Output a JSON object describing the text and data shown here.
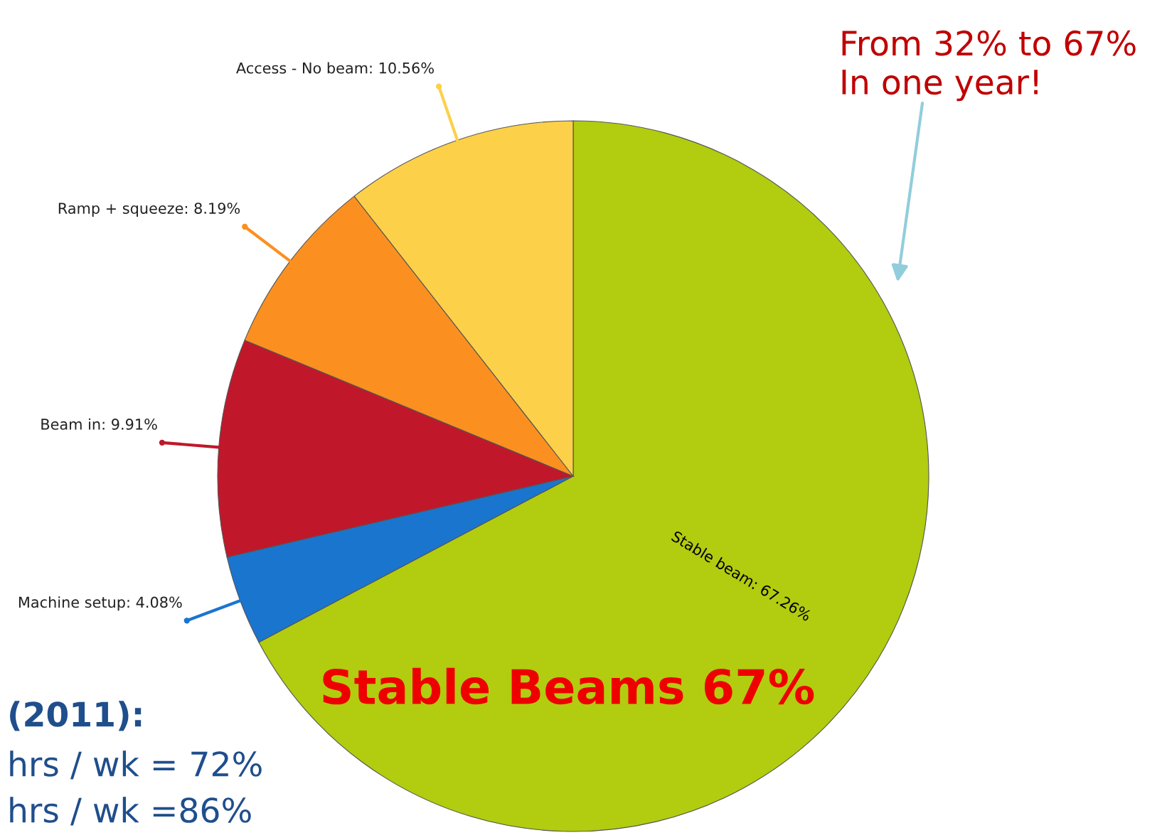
{
  "chart_data": {
    "type": "pie",
    "categories": [
      "Stable beam: 67.26%",
      "Machine setup: 4.08%",
      "Beam in: 9.91%",
      "Ramp + squeeze: 8.19%",
      "Access - No beam: 10.56%"
    ],
    "values": [
      67.26,
      4.08,
      9.91,
      8.19,
      10.56
    ],
    "colors": [
      "#b2cc10",
      "#1a75cf",
      "#c0182a",
      "#fb9020",
      "#fdd04a"
    ],
    "annotations": [
      "From 32% to 67%\nIn one year!",
      "Stable Beams 67%",
      "(2011):",
      "hrs / wk = 72%",
      "hrs / wk =86%"
    ]
  }
}
